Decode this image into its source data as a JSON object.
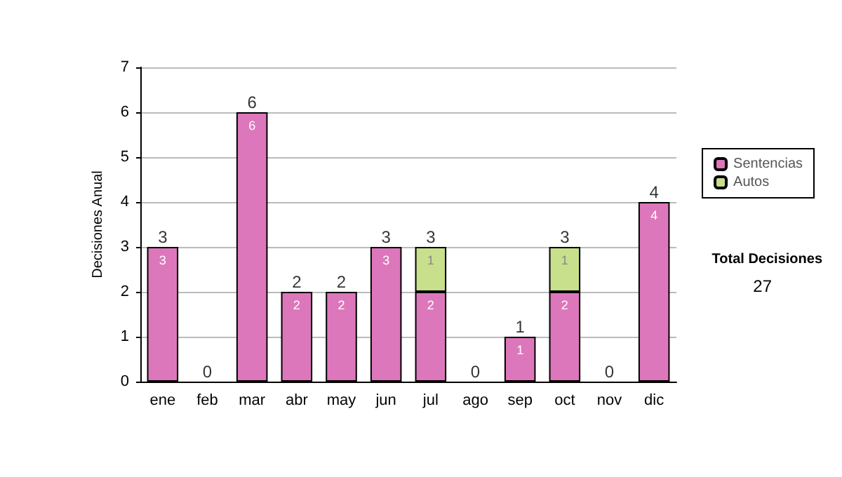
{
  "chart_data": {
    "type": "bar",
    "stacked": true,
    "ylabel": "Decisiones Anual",
    "categories": [
      "ene",
      "feb",
      "mar",
      "abr",
      "may",
      "jun",
      "jul",
      "ago",
      "sep",
      "oct",
      "nov",
      "dic"
    ],
    "series": [
      {
        "name": "Sentencias",
        "color": "#dd77bb",
        "values": [
          3,
          0,
          6,
          2,
          2,
          3,
          2,
          0,
          1,
          2,
          0,
          4
        ],
        "value_labels": [
          "3",
          null,
          "6",
          "2",
          "2",
          "3",
          "2",
          null,
          "1",
          "2",
          null,
          "4"
        ]
      },
      {
        "name": "Autos",
        "color": "#c8e08c",
        "values": [
          0,
          0,
          0,
          0,
          0,
          0,
          1,
          0,
          0,
          1,
          0,
          0
        ],
        "value_labels": [
          null,
          null,
          null,
          null,
          null,
          null,
          "1",
          null,
          null,
          "1",
          null,
          null
        ]
      }
    ],
    "totals": [
      "3",
      "0",
      "6",
      "2",
      "2",
      "3",
      "3",
      "0",
      "1",
      "3",
      "0",
      "4"
    ],
    "ylim": [
      0,
      7
    ],
    "yticks": [
      0,
      1,
      2,
      3,
      4,
      5,
      6,
      7
    ],
    "grid": "y",
    "legend": "right",
    "annotations": [
      "Total Decisiones",
      "27"
    ]
  }
}
